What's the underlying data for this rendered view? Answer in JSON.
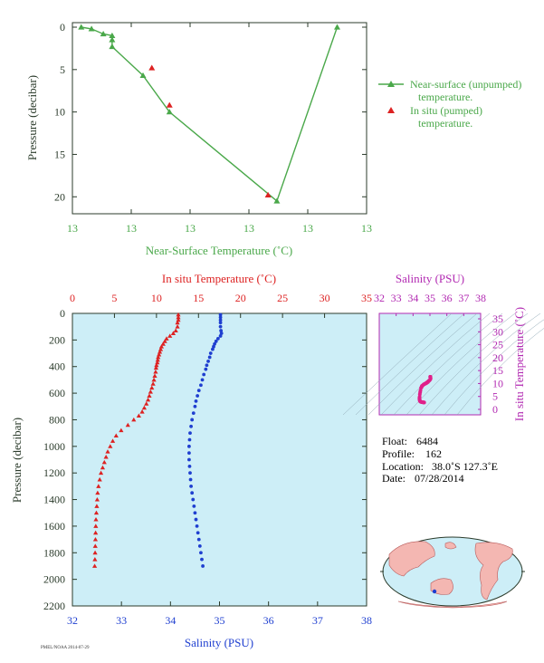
{
  "chart_data": [
    {
      "type": "line",
      "xlabel": "Near-Surface Temperature (˚C)",
      "ylabel": "Pressure (decibar)",
      "x_tick_labels": [
        "13",
        "13",
        "13",
        "13",
        "13",
        "13"
      ],
      "y_ticks": [
        0,
        5,
        10,
        15,
        20
      ],
      "ylim": [
        0,
        22
      ],
      "legend": {
        "placement": "right",
        "entries": [
          {
            "label_line1": "Near-surface (unpumped)",
            "label_line2": "temperature."
          },
          {
            "label_line1": "In situ (pumped)",
            "label_line2": "temperature."
          }
        ]
      },
      "series": [
        {
          "name": "Near-surface (unpumped) temperature.",
          "color": "#4aa84a",
          "note": "x positions are fractions of the axis span; the axis prints only identical 13 labels",
          "x_fraction": [
            0.03,
            0.065,
            0.105,
            0.135,
            0.135,
            0.135,
            0.24,
            0.33,
            0.695,
            0.9
          ],
          "y": [
            0.0,
            0.2,
            0.8,
            1.0,
            1.5,
            2.3,
            5.7,
            10.0,
            20.5,
            0.0
          ]
        },
        {
          "name": "In situ (pumped) temperature.",
          "color": "#dd2222",
          "x_fraction": [
            0.27,
            0.33,
            0.665
          ],
          "y": [
            4.8,
            9.2,
            19.8
          ]
        }
      ]
    },
    {
      "type": "scatter",
      "top_axis_label": "In situ Temperature (˚C)",
      "bottom_axis_label": "Salinity (PSU)",
      "ylabel": "Pressure (decibar)",
      "temp_ticks": [
        0,
        5,
        10,
        15,
        20,
        25,
        30,
        35
      ],
      "temp_lim": [
        0,
        35
      ],
      "sal_ticks": [
        32,
        33,
        34,
        35,
        36,
        37,
        38
      ],
      "sal_lim": [
        32,
        38
      ],
      "pressure_ticks": [
        0,
        200,
        400,
        600,
        800,
        1000,
        1200,
        1400,
        1600,
        1800,
        2000,
        2200
      ],
      "pressure_lim": [
        0,
        2200
      ],
      "temperature_series": {
        "color": "#dd2222",
        "pressure": [
          10,
          30,
          50,
          70,
          100,
          130,
          150,
          170,
          190,
          210,
          230,
          250,
          270,
          290,
          310,
          330,
          350,
          370,
          390,
          410,
          440,
          470,
          500,
          530,
          560,
          590,
          620,
          650,
          680,
          710,
          740,
          770,
          800,
          840,
          880,
          920,
          960,
          1000,
          1040,
          1080,
          1120,
          1160,
          1200,
          1250,
          1300,
          1350,
          1400,
          1450,
          1500,
          1550,
          1600,
          1650,
          1700,
          1750,
          1800,
          1850,
          1900
        ],
        "temperature": [
          12.6,
          12.6,
          12.6,
          12.5,
          12.5,
          12.3,
          12.0,
          11.6,
          11.2,
          11.0,
          10.8,
          10.6,
          10.5,
          10.4,
          10.3,
          10.2,
          10.15,
          10.1,
          10.0,
          9.95,
          9.9,
          9.8,
          9.7,
          9.6,
          9.45,
          9.3,
          9.15,
          9.0,
          8.8,
          8.55,
          8.3,
          7.9,
          7.3,
          6.6,
          5.8,
          5.2,
          4.8,
          4.5,
          4.2,
          4.0,
          3.8,
          3.6,
          3.4,
          3.25,
          3.1,
          3.0,
          2.95,
          2.9,
          2.85,
          2.8,
          2.78,
          2.76,
          2.74,
          2.72,
          2.7,
          2.68,
          2.65
        ]
      },
      "salinity_series": {
        "color": "#1f3fd0",
        "pressure": [
          10,
          30,
          50,
          70,
          100,
          130,
          150,
          170,
          190,
          210,
          230,
          250,
          270,
          300,
          330,
          360,
          390,
          420,
          460,
          500,
          540,
          580,
          620,
          660,
          700,
          750,
          800,
          850,
          900,
          950,
          1000,
          1050,
          1100,
          1150,
          1200,
          1250,
          1300,
          1350,
          1400,
          1450,
          1500,
          1550,
          1600,
          1650,
          1700,
          1750,
          1800,
          1850,
          1900
        ],
        "salinity": [
          35.02,
          35.02,
          35.02,
          35.02,
          35.02,
          35.03,
          35.04,
          35.02,
          34.97,
          34.93,
          34.9,
          34.88,
          34.86,
          34.82,
          34.8,
          34.77,
          34.74,
          34.72,
          34.68,
          34.65,
          34.62,
          34.58,
          34.55,
          34.52,
          34.5,
          34.47,
          34.44,
          34.42,
          34.4,
          34.39,
          34.38,
          34.38,
          34.38,
          34.39,
          34.4,
          34.41,
          34.42,
          34.44,
          34.46,
          34.48,
          34.5,
          34.52,
          34.54,
          34.56,
          34.58,
          34.6,
          34.62,
          34.64,
          34.66
        ]
      },
      "inset_ts": {
        "top_label": "Salinity (PSU)",
        "right_label": "In situ Temperature (˚C)",
        "sal_ticks": [
          32,
          33,
          34,
          35,
          36,
          37,
          38
        ],
        "temp_ticks": [
          0,
          5,
          10,
          15,
          20,
          25,
          30,
          35
        ],
        "color": "#e0208a",
        "color_axis": "#b22ab2"
      }
    }
  ],
  "info": {
    "float_label": "Float:",
    "float_value": "6484",
    "profile_label": "Profile:",
    "profile_value": "162",
    "location_label": "Location:",
    "location_value": "38.0˚S  127.3˚E",
    "date_label": "Date:",
    "date_value": "07/28/2014"
  },
  "footer_small": "PMEL/NOAA 2014-07-29"
}
